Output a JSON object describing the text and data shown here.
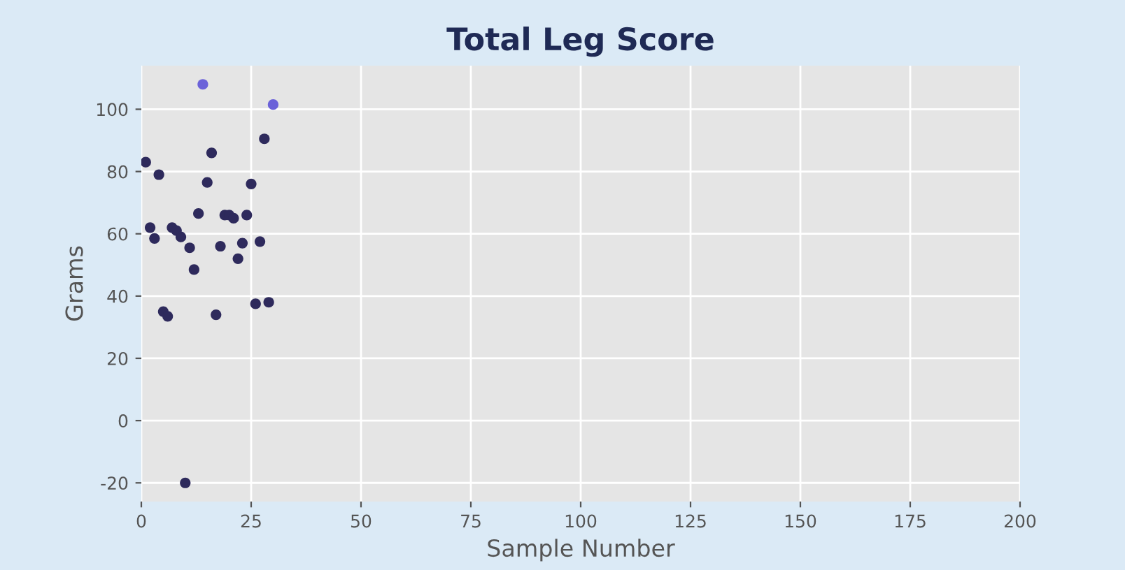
{
  "chart_data": {
    "type": "scatter",
    "title": "Total Leg Score",
    "xlabel": "Sample Number",
    "ylabel": "Grams",
    "x": [
      1,
      2,
      3,
      4,
      5,
      6,
      7,
      8,
      9,
      10,
      11,
      12,
      13,
      14,
      15,
      16,
      17,
      18,
      19,
      20,
      21,
      22,
      23,
      24,
      25,
      26,
      27,
      28,
      29,
      30
    ],
    "values": [
      83,
      62,
      58.5,
      79,
      35,
      33.5,
      62,
      61,
      59,
      -20,
      55.5,
      48.5,
      66.5,
      108,
      76.5,
      86,
      34,
      56,
      66,
      66,
      65,
      52,
      57,
      66,
      76,
      37.5,
      57.5,
      90.5,
      38,
      101.5
    ],
    "colors": [
      "#2e2a5c",
      "#2e2a5c",
      "#2e2a5c",
      "#2e2a5c",
      "#2e2a5c",
      "#2e2a5c",
      "#2e2a5c",
      "#2e2a5c",
      "#2e2a5c",
      "#2e2a5c",
      "#2e2a5c",
      "#2e2a5c",
      "#2e2a5c",
      "#6b62d9",
      "#2e2a5c",
      "#2e2a5c",
      "#2e2a5c",
      "#2e2a5c",
      "#2e2a5c",
      "#2e2a5c",
      "#2e2a5c",
      "#2e2a5c",
      "#2e2a5c",
      "#2e2a5c",
      "#2e2a5c",
      "#2e2a5c",
      "#2e2a5c",
      "#2e2a5c",
      "#2e2a5c",
      "#6b62d9"
    ],
    "xlim": [
      0,
      200
    ],
    "ylim": [
      -26,
      114
    ],
    "xticks": [
      0,
      25,
      50,
      75,
      100,
      125,
      150,
      175,
      200
    ],
    "yticks": [
      -20,
      0,
      20,
      40,
      60,
      80,
      100
    ],
    "grid": true,
    "marker": "circle"
  }
}
